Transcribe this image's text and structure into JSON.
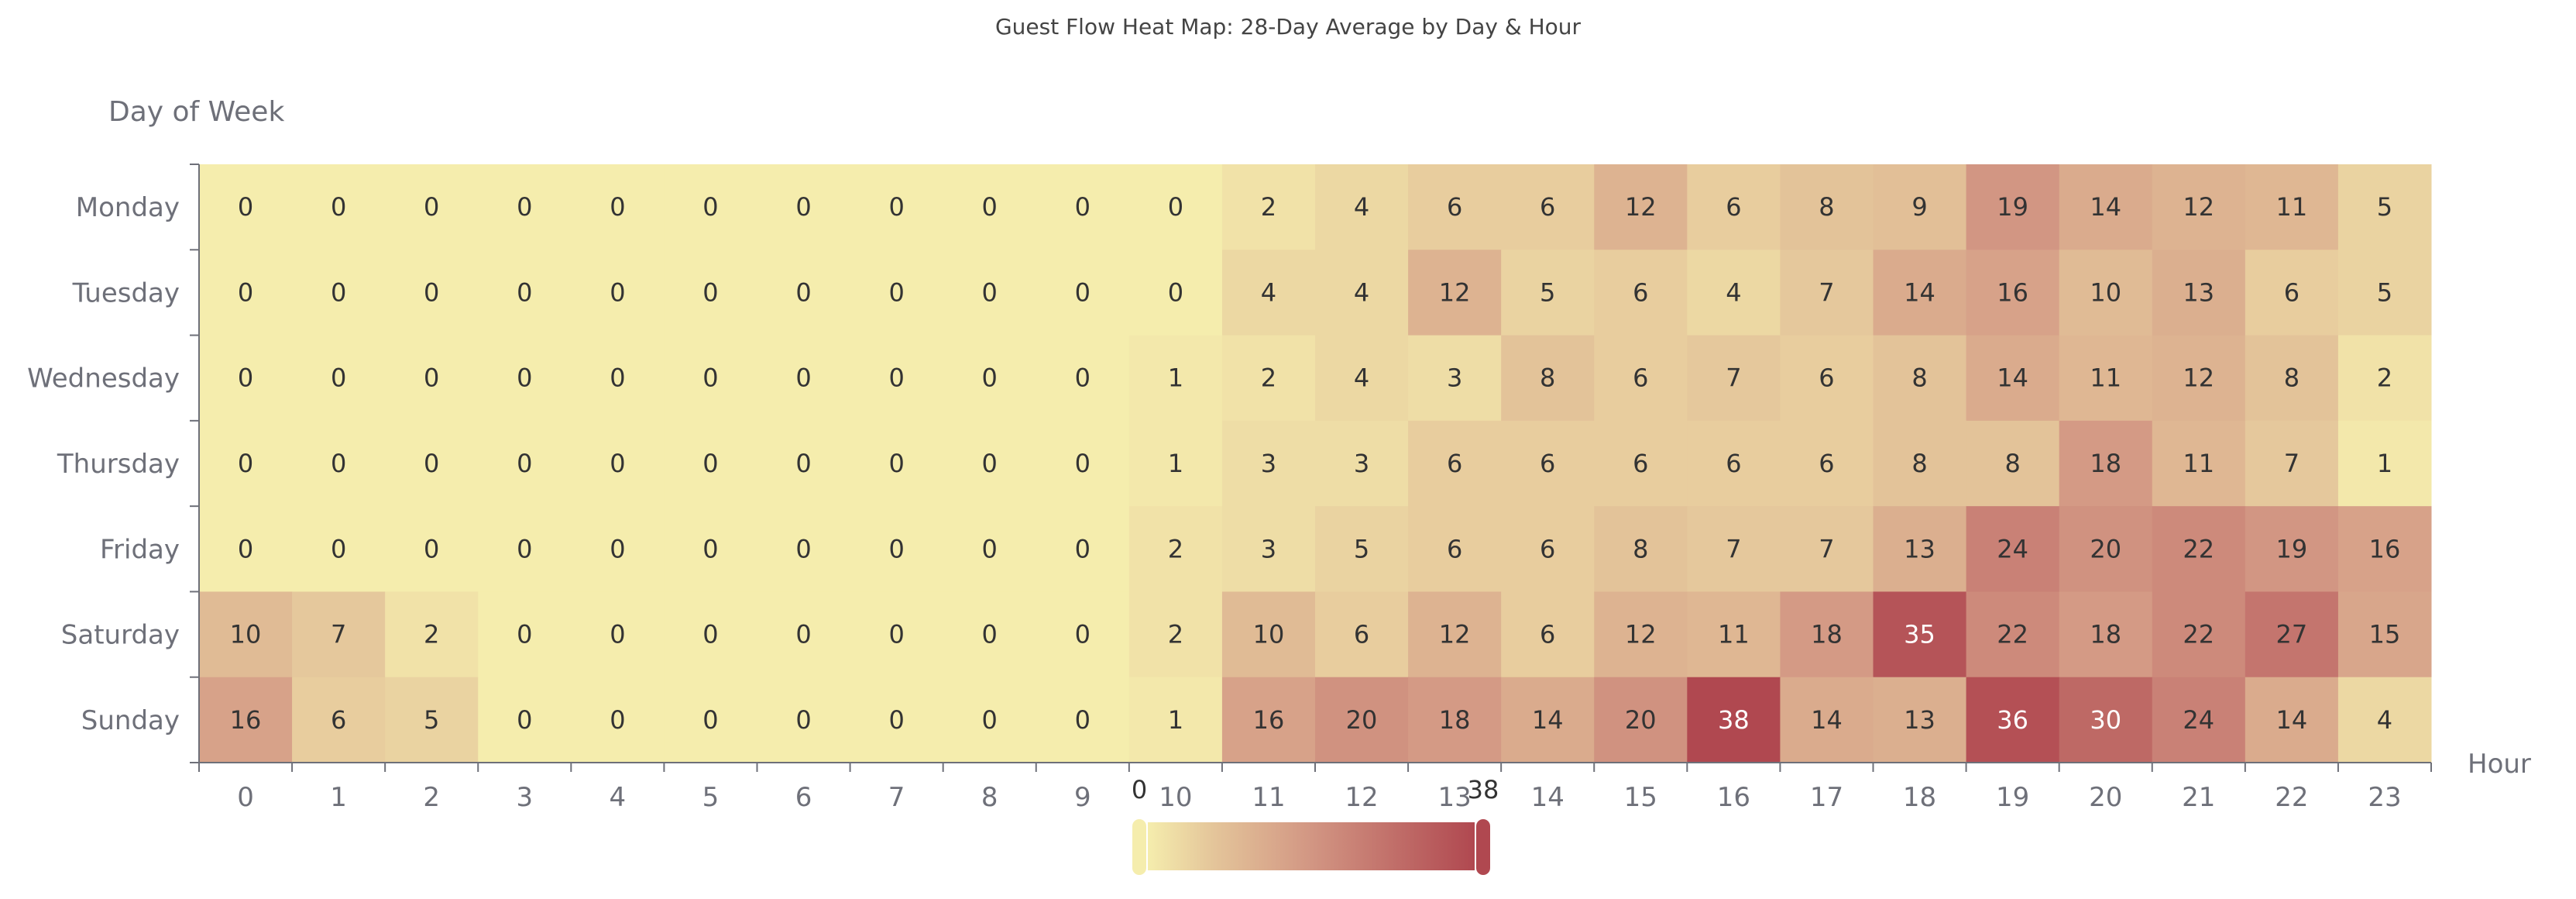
{
  "chart_data": {
    "type": "heatmap",
    "title": "Guest Flow Heat Map: 28-Day Average by Day & Hour",
    "xlabel": "Hour",
    "ylabel": "Day of Week",
    "x_categories": [
      "0",
      "1",
      "2",
      "3",
      "4",
      "5",
      "6",
      "7",
      "8",
      "9",
      "10",
      "11",
      "12",
      "13",
      "14",
      "15",
      "16",
      "17",
      "18",
      "19",
      "20",
      "21",
      "22",
      "23"
    ],
    "y_categories": [
      "Monday",
      "Tuesday",
      "Wednesday",
      "Thursday",
      "Friday",
      "Saturday",
      "Sunday"
    ],
    "values": [
      [
        0,
        0,
        0,
        0,
        0,
        0,
        0,
        0,
        0,
        0,
        0,
        2,
        4,
        6,
        6,
        12,
        6,
        8,
        9,
        19,
        14,
        12,
        11,
        5
      ],
      [
        0,
        0,
        0,
        0,
        0,
        0,
        0,
        0,
        0,
        0,
        0,
        4,
        4,
        12,
        5,
        6,
        4,
        7,
        14,
        16,
        10,
        13,
        6,
        5
      ],
      [
        0,
        0,
        0,
        0,
        0,
        0,
        0,
        0,
        0,
        0,
        1,
        2,
        4,
        3,
        8,
        6,
        7,
        6,
        8,
        14,
        11,
        12,
        8,
        2
      ],
      [
        0,
        0,
        0,
        0,
        0,
        0,
        0,
        0,
        0,
        0,
        1,
        3,
        3,
        6,
        6,
        6,
        6,
        6,
        8,
        8,
        18,
        11,
        7,
        1
      ],
      [
        0,
        0,
        0,
        0,
        0,
        0,
        0,
        0,
        0,
        0,
        2,
        3,
        5,
        6,
        6,
        8,
        7,
        7,
        13,
        24,
        20,
        22,
        19,
        16
      ],
      [
        10,
        7,
        2,
        0,
        0,
        0,
        0,
        0,
        0,
        0,
        2,
        10,
        6,
        12,
        6,
        12,
        11,
        18,
        35,
        22,
        18,
        22,
        27,
        15
      ],
      [
        16,
        6,
        5,
        0,
        0,
        0,
        0,
        0,
        0,
        0,
        1,
        16,
        20,
        18,
        14,
        20,
        38,
        14,
        13,
        36,
        30,
        24,
        14,
        4
      ]
    ],
    "visual_map": {
      "min": 0,
      "max": 38,
      "min_label": "0",
      "max_label": "38",
      "orientation": "horizontal",
      "position": "bottom-center"
    },
    "colors": {
      "low": "#f5edad",
      "mid_low": "#e4c59a",
      "mid": "#d29683",
      "high": "#b04850"
    },
    "grid": false
  }
}
